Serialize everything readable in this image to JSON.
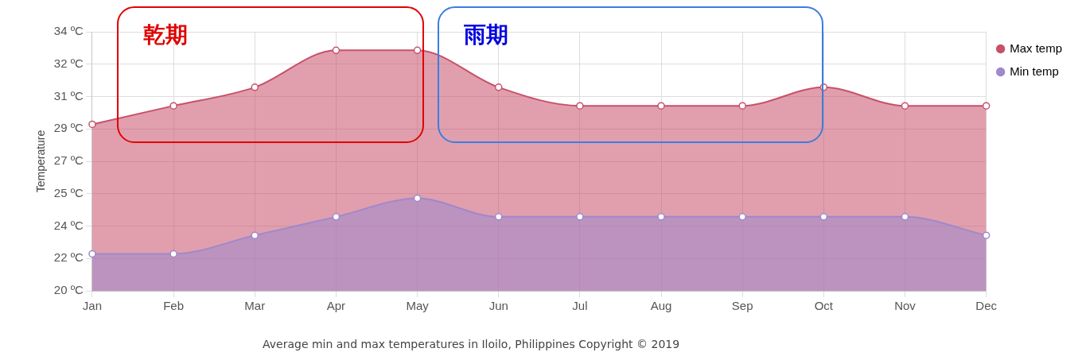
{
  "chart_data": {
    "type": "area",
    "ylabel": "Temperature",
    "categories": [
      "Jan",
      "Feb",
      "Mar",
      "Apr",
      "May",
      "Jun",
      "Jul",
      "Aug",
      "Sep",
      "Oct",
      "Nov",
      "Dec"
    ],
    "series": [
      {
        "name": "Max temp",
        "color": "#c8506a",
        "values": [
          29,
          30,
          31,
          33,
          33,
          31,
          30,
          30,
          30,
          31,
          30,
          30
        ]
      },
      {
        "name": "Min temp",
        "color": "#9f88cc",
        "values": [
          22,
          22,
          23,
          24,
          25,
          24,
          24,
          24,
          24,
          24,
          24,
          23
        ]
      }
    ],
    "ylim": [
      20,
      34
    ],
    "yticks": [
      {
        "value": 20,
        "label": "20 ºC"
      },
      {
        "value": 21.75,
        "label": "22 ºC"
      },
      {
        "value": 23.5,
        "label": "24 ºC"
      },
      {
        "value": 25.25,
        "label": "25 ºC"
      },
      {
        "value": 27,
        "label": "27 ºC"
      },
      {
        "value": 28.75,
        "label": "29 ºC"
      },
      {
        "value": 30.5,
        "label": "31 ºC"
      },
      {
        "value": 32.25,
        "label": "32 ºC"
      },
      {
        "value": 34,
        "label": "34 ºC"
      }
    ],
    "grid": true,
    "legend": "top right",
    "marker": "circle",
    "annotations": [
      "乾期",
      "雨期",
      "Average min and max temperatures in Iloilo, Philippines   Copyright © 2019"
    ]
  }
}
